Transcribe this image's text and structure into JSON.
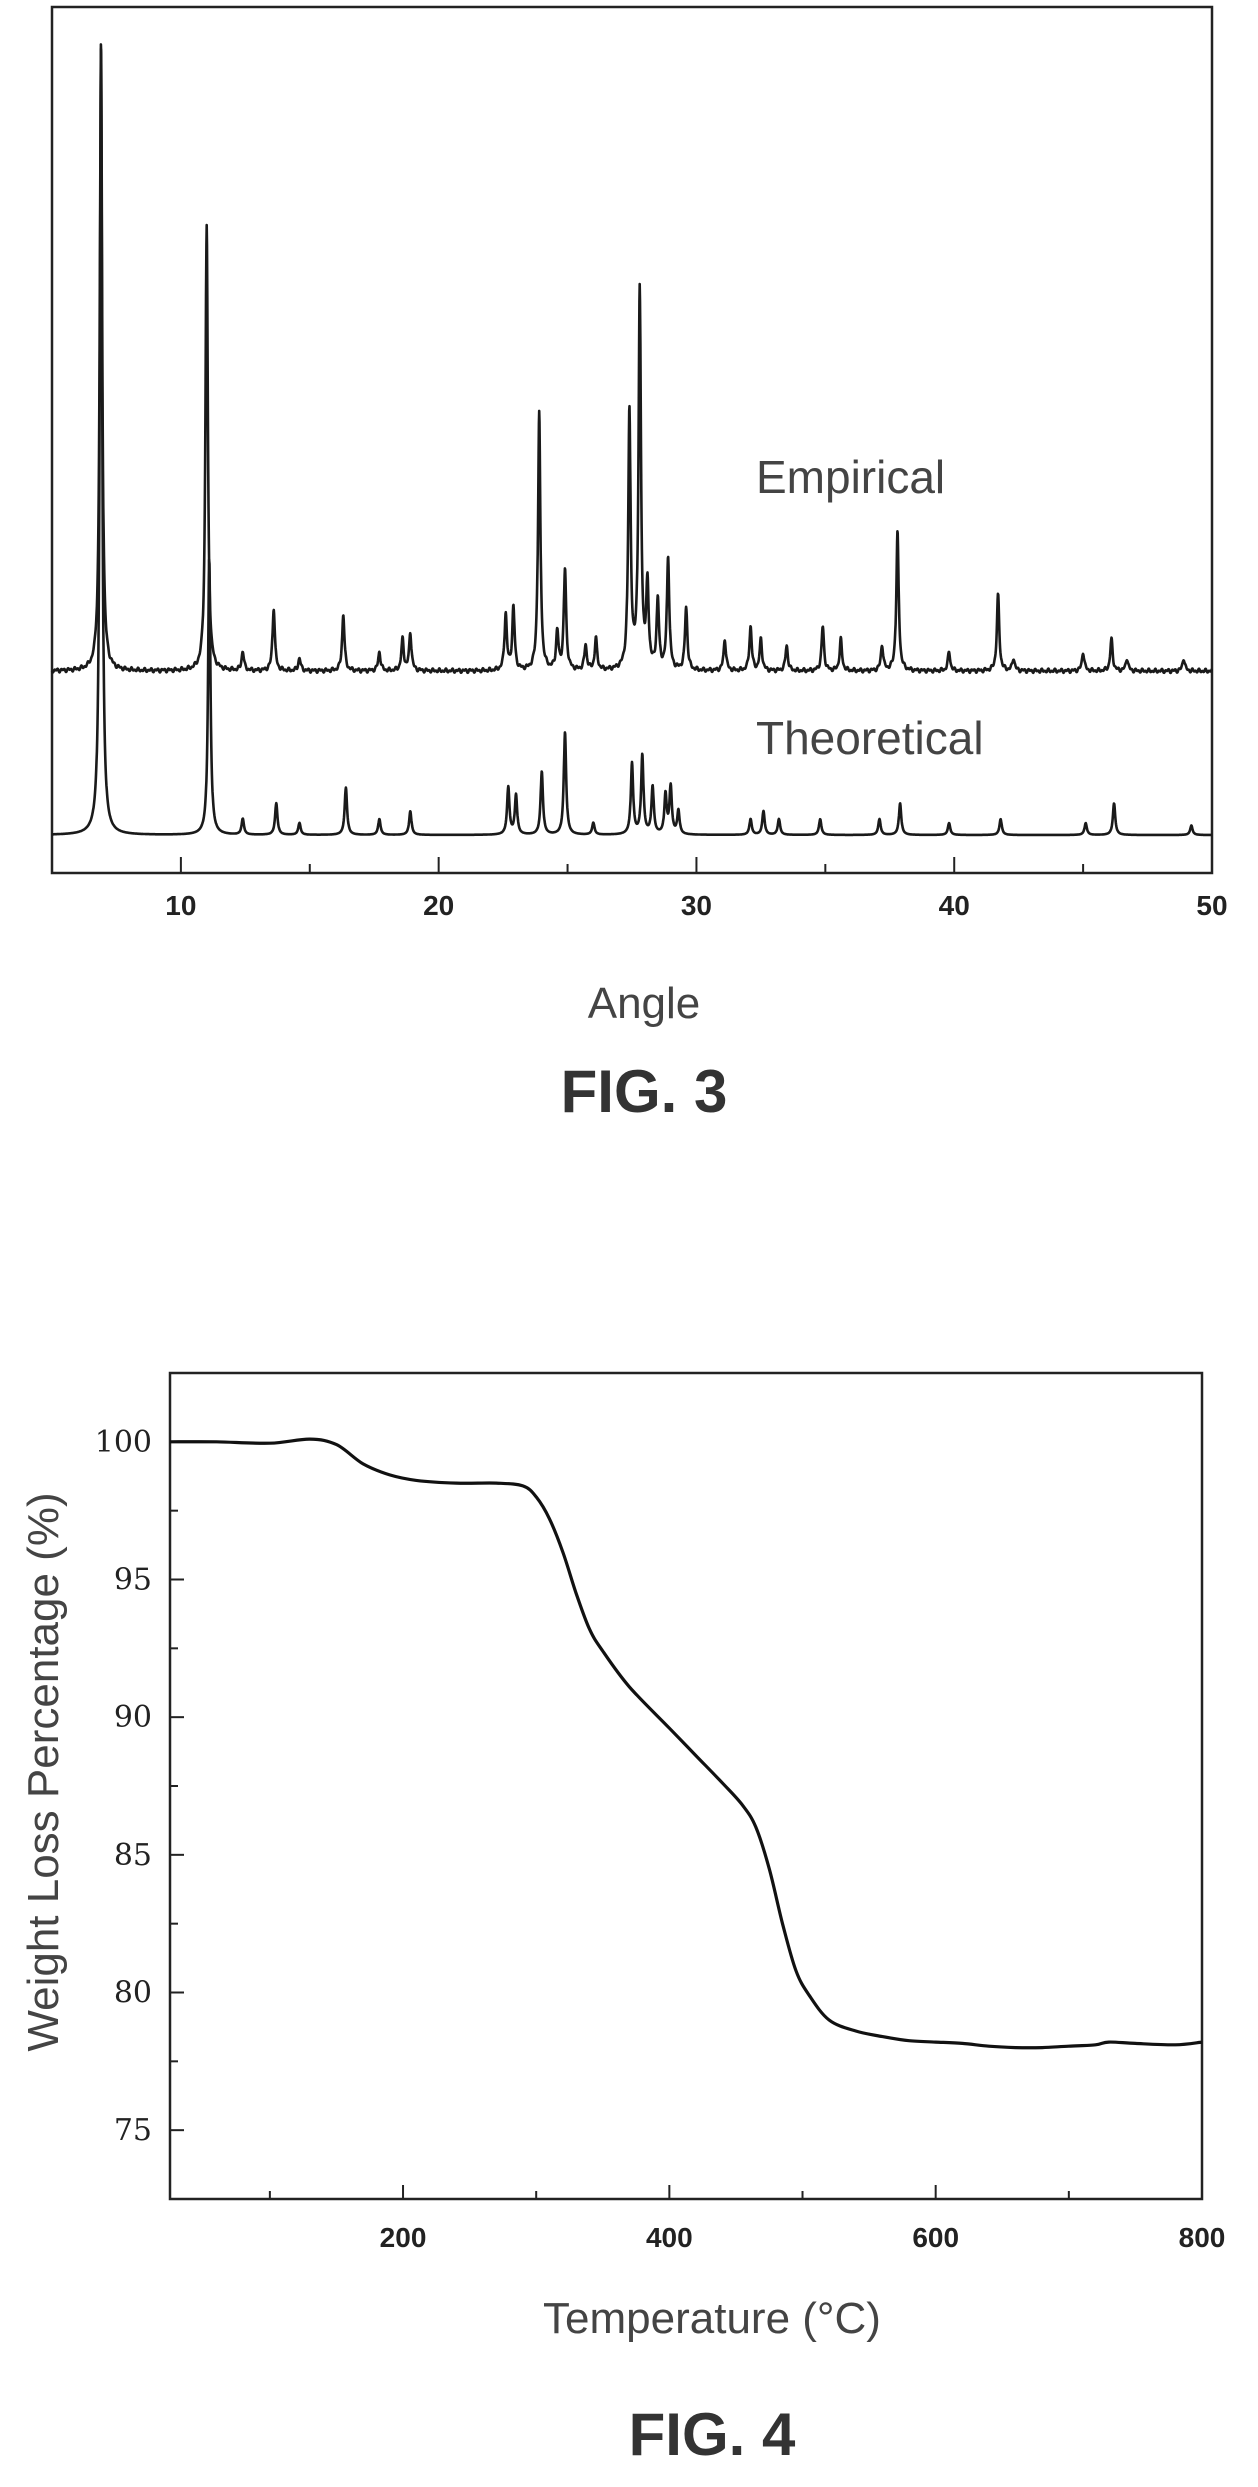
{
  "chart_data": [
    {
      "type": "line",
      "title": "",
      "caption": "FIG. 3",
      "xlabel": "Angle",
      "ylabel": "",
      "xlim": [
        5,
        50
      ],
      "xticks": [
        10,
        20,
        30,
        40,
        50
      ],
      "y_axis_ticks_shown": false,
      "grid": false,
      "legend": "none (series labeled inline above each trace)",
      "series": [
        {
          "name": "Empirical",
          "peaks": [
            {
              "x": 6.9,
              "y": 100
            },
            {
              "x": 11.0,
              "y": 71
            },
            {
              "x": 12.4,
              "y": 3
            },
            {
              "x": 13.6,
              "y": 10
            },
            {
              "x": 14.6,
              "y": 2
            },
            {
              "x": 16.3,
              "y": 9
            },
            {
              "x": 17.7,
              "y": 3
            },
            {
              "x": 18.6,
              "y": 5
            },
            {
              "x": 18.9,
              "y": 6
            },
            {
              "x": 22.6,
              "y": 9
            },
            {
              "x": 22.9,
              "y": 10
            },
            {
              "x": 23.9,
              "y": 41
            },
            {
              "x": 24.6,
              "y": 6
            },
            {
              "x": 24.9,
              "y": 16
            },
            {
              "x": 25.7,
              "y": 4
            },
            {
              "x": 26.1,
              "y": 5
            },
            {
              "x": 27.4,
              "y": 41
            },
            {
              "x": 27.8,
              "y": 60
            },
            {
              "x": 28.1,
              "y": 13
            },
            {
              "x": 28.5,
              "y": 11
            },
            {
              "x": 28.9,
              "y": 18
            },
            {
              "x": 29.6,
              "y": 10
            },
            {
              "x": 31.1,
              "y": 5
            },
            {
              "x": 32.1,
              "y": 7
            },
            {
              "x": 32.5,
              "y": 5
            },
            {
              "x": 33.5,
              "y": 4
            },
            {
              "x": 34.9,
              "y": 7
            },
            {
              "x": 35.6,
              "y": 5
            },
            {
              "x": 37.2,
              "y": 4
            },
            {
              "x": 37.8,
              "y": 22
            },
            {
              "x": 39.8,
              "y": 3
            },
            {
              "x": 41.7,
              "y": 12
            },
            {
              "x": 42.3,
              "y": 2
            },
            {
              "x": 45.0,
              "y": 3
            },
            {
              "x": 46.1,
              "y": 5
            },
            {
              "x": 46.7,
              "y": 2
            },
            {
              "x": 48.9,
              "y": 2
            }
          ]
        },
        {
          "name": "Theoretical",
          "peaks": [
            {
              "x": 6.9,
              "y": 100
            },
            {
              "x": 11.1,
              "y": 35
            },
            {
              "x": 12.4,
              "y": 2
            },
            {
              "x": 13.7,
              "y": 4
            },
            {
              "x": 14.6,
              "y": 1.5
            },
            {
              "x": 16.4,
              "y": 6
            },
            {
              "x": 17.7,
              "y": 2
            },
            {
              "x": 18.9,
              "y": 3
            },
            {
              "x": 22.7,
              "y": 6
            },
            {
              "x": 23.0,
              "y": 5
            },
            {
              "x": 24.0,
              "y": 8
            },
            {
              "x": 24.9,
              "y": 13
            },
            {
              "x": 26.0,
              "y": 1.5
            },
            {
              "x": 27.5,
              "y": 9
            },
            {
              "x": 27.9,
              "y": 10
            },
            {
              "x": 28.3,
              "y": 6
            },
            {
              "x": 28.8,
              "y": 5
            },
            {
              "x": 29.0,
              "y": 6
            },
            {
              "x": 29.3,
              "y": 3
            },
            {
              "x": 32.1,
              "y": 2
            },
            {
              "x": 32.6,
              "y": 3
            },
            {
              "x": 33.2,
              "y": 2
            },
            {
              "x": 34.8,
              "y": 2
            },
            {
              "x": 37.1,
              "y": 2
            },
            {
              "x": 37.9,
              "y": 4
            },
            {
              "x": 39.8,
              "y": 1.5
            },
            {
              "x": 41.8,
              "y": 2
            },
            {
              "x": 45.1,
              "y": 1.5
            },
            {
              "x": 46.2,
              "y": 4
            },
            {
              "x": 49.2,
              "y": 1.2
            }
          ]
        }
      ]
    },
    {
      "type": "line",
      "title": "",
      "caption": "FIG. 4",
      "xlabel": "Temperature (°C)",
      "ylabel": "Weight Loss Percentage (%)",
      "xlim": [
        25,
        800
      ],
      "ylim": [
        72.5,
        102.5
      ],
      "xticks": [
        200,
        400,
        600,
        800
      ],
      "yticks": [
        75,
        80,
        85,
        90,
        95,
        100
      ],
      "grid": false,
      "series": [
        {
          "name": "",
          "x": [
            25,
            60,
            100,
            130,
            150,
            170,
            190,
            210,
            240,
            270,
            290,
            300,
            310,
            320,
            330,
            340,
            350,
            370,
            400,
            420,
            440,
            455,
            465,
            475,
            485,
            495,
            505,
            520,
            540,
            560,
            580,
            600,
            620,
            640,
            660,
            680,
            700,
            720,
            730,
            750,
            780,
            800
          ],
          "y": [
            100.0,
            100.0,
            99.95,
            100.1,
            99.9,
            99.2,
            98.8,
            98.6,
            98.5,
            98.5,
            98.4,
            98.0,
            97.2,
            96.0,
            94.5,
            93.2,
            92.4,
            91.1,
            89.6,
            88.6,
            87.6,
            86.8,
            86.0,
            84.5,
            82.5,
            80.8,
            79.9,
            79.0,
            78.6,
            78.4,
            78.25,
            78.2,
            78.15,
            78.05,
            78.0,
            78.0,
            78.05,
            78.1,
            78.2,
            78.15,
            78.1,
            78.2
          ]
        }
      ]
    }
  ]
}
